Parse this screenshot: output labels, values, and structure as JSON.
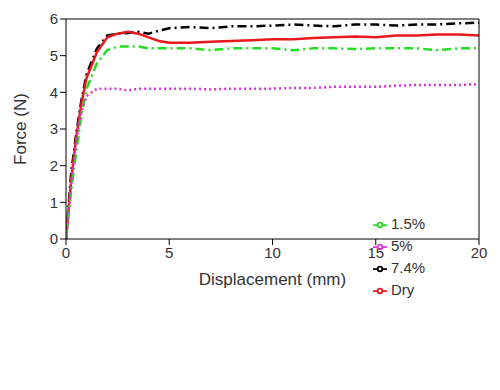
{
  "chart_data": {
    "type": "line",
    "xlabel": "Displacement (mm)",
    "ylabel": "Force (N)",
    "x": [
      0,
      0.25,
      0.5,
      0.75,
      1,
      1.5,
      2,
      2.5,
      3,
      3.5,
      4,
      4.5,
      5,
      6,
      7,
      8,
      9,
      10,
      11,
      12,
      13,
      14,
      15,
      16,
      17,
      18,
      19,
      20
    ],
    "series": [
      {
        "name": "7.4%",
        "color": "#000000",
        "line_style": "dash-dot",
        "values": [
          0,
          1.8,
          2.9,
          3.8,
          4.5,
          5.2,
          5.55,
          5.6,
          5.62,
          5.65,
          5.6,
          5.68,
          5.75,
          5.78,
          5.75,
          5.8,
          5.8,
          5.82,
          5.85,
          5.82,
          5.8,
          5.85,
          5.85,
          5.82,
          5.85,
          5.85,
          5.88,
          5.9
        ]
      },
      {
        "name": "Dry",
        "color": "#e8191c",
        "line_style": "solid",
        "values": [
          0,
          1.6,
          2.8,
          3.7,
          4.4,
          5.1,
          5.5,
          5.6,
          5.65,
          5.6,
          5.5,
          5.4,
          5.35,
          5.35,
          5.38,
          5.4,
          5.42,
          5.45,
          5.45,
          5.48,
          5.5,
          5.52,
          5.5,
          5.55,
          5.55,
          5.58,
          5.58,
          5.55
        ]
      },
      {
        "name": "1.5%",
        "color": "#22dd22",
        "line_style": "dash-dot",
        "values": [
          0,
          1.3,
          2.4,
          3.4,
          4.1,
          4.8,
          5.15,
          5.25,
          5.25,
          5.25,
          5.2,
          5.2,
          5.2,
          5.2,
          5.15,
          5.2,
          5.2,
          5.2,
          5.15,
          5.2,
          5.2,
          5.18,
          5.2,
          5.2,
          5.2,
          5.15,
          5.2,
          5.2
        ]
      },
      {
        "name": "5%",
        "color": "#e030e0",
        "line_style": "dotted",
        "values": [
          0,
          1.5,
          2.7,
          3.5,
          3.9,
          4.1,
          4.1,
          4.1,
          4.05,
          4.1,
          4.1,
          4.1,
          4.1,
          4.1,
          4.08,
          4.1,
          4.1,
          4.1,
          4.12,
          4.12,
          4.15,
          4.15,
          4.15,
          4.18,
          4.2,
          4.2,
          4.2,
          4.22
        ]
      }
    ],
    "xlim": [
      0,
      20
    ],
    "xticks": [
      0,
      5,
      10,
      15,
      20
    ],
    "ylim": [
      0,
      6
    ],
    "yticks": [
      0,
      1,
      2,
      3,
      4,
      5,
      6
    ],
    "grid": false,
    "legend": "lower right"
  }
}
